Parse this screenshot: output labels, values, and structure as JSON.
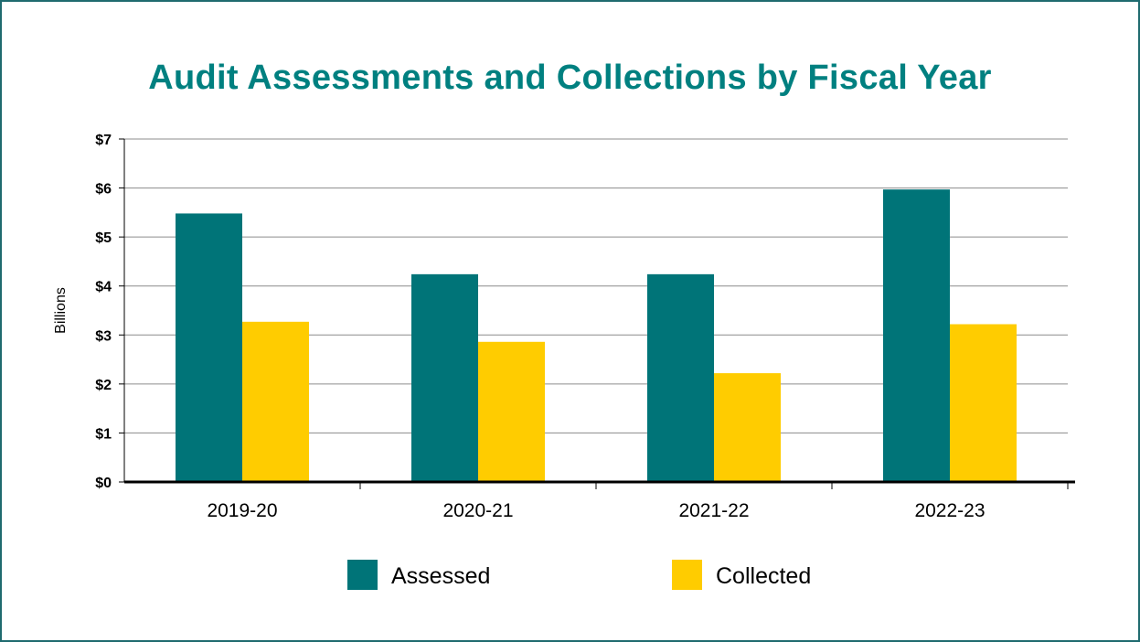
{
  "chart_data": {
    "type": "bar",
    "title": "Audit Assessments and Collections by Fiscal Year",
    "xlabel": "",
    "ylabel": "Billions",
    "categories": [
      "2019-20",
      "2020-21",
      "2021-22",
      "2022-23"
    ],
    "series": [
      {
        "name": "Assessed",
        "color": "#007478",
        "values": [
          5.48,
          4.24,
          4.24,
          5.97
        ]
      },
      {
        "name": "Collected",
        "color": "#ffcc00",
        "values": [
          3.27,
          2.86,
          2.22,
          3.22
        ]
      }
    ],
    "ylim": [
      0,
      7
    ],
    "yticks": [
      {
        "value": 0,
        "label": "$0"
      },
      {
        "value": 1,
        "label": "$1"
      },
      {
        "value": 2,
        "label": "$2"
      },
      {
        "value": 3,
        "label": "$3"
      },
      {
        "value": 4,
        "label": "$4"
      },
      {
        "value": 5,
        "label": "$5"
      },
      {
        "value": 6,
        "label": "$6"
      },
      {
        "value": 7,
        "label": "$7"
      }
    ],
    "grid": true,
    "legend": "bottom"
  }
}
